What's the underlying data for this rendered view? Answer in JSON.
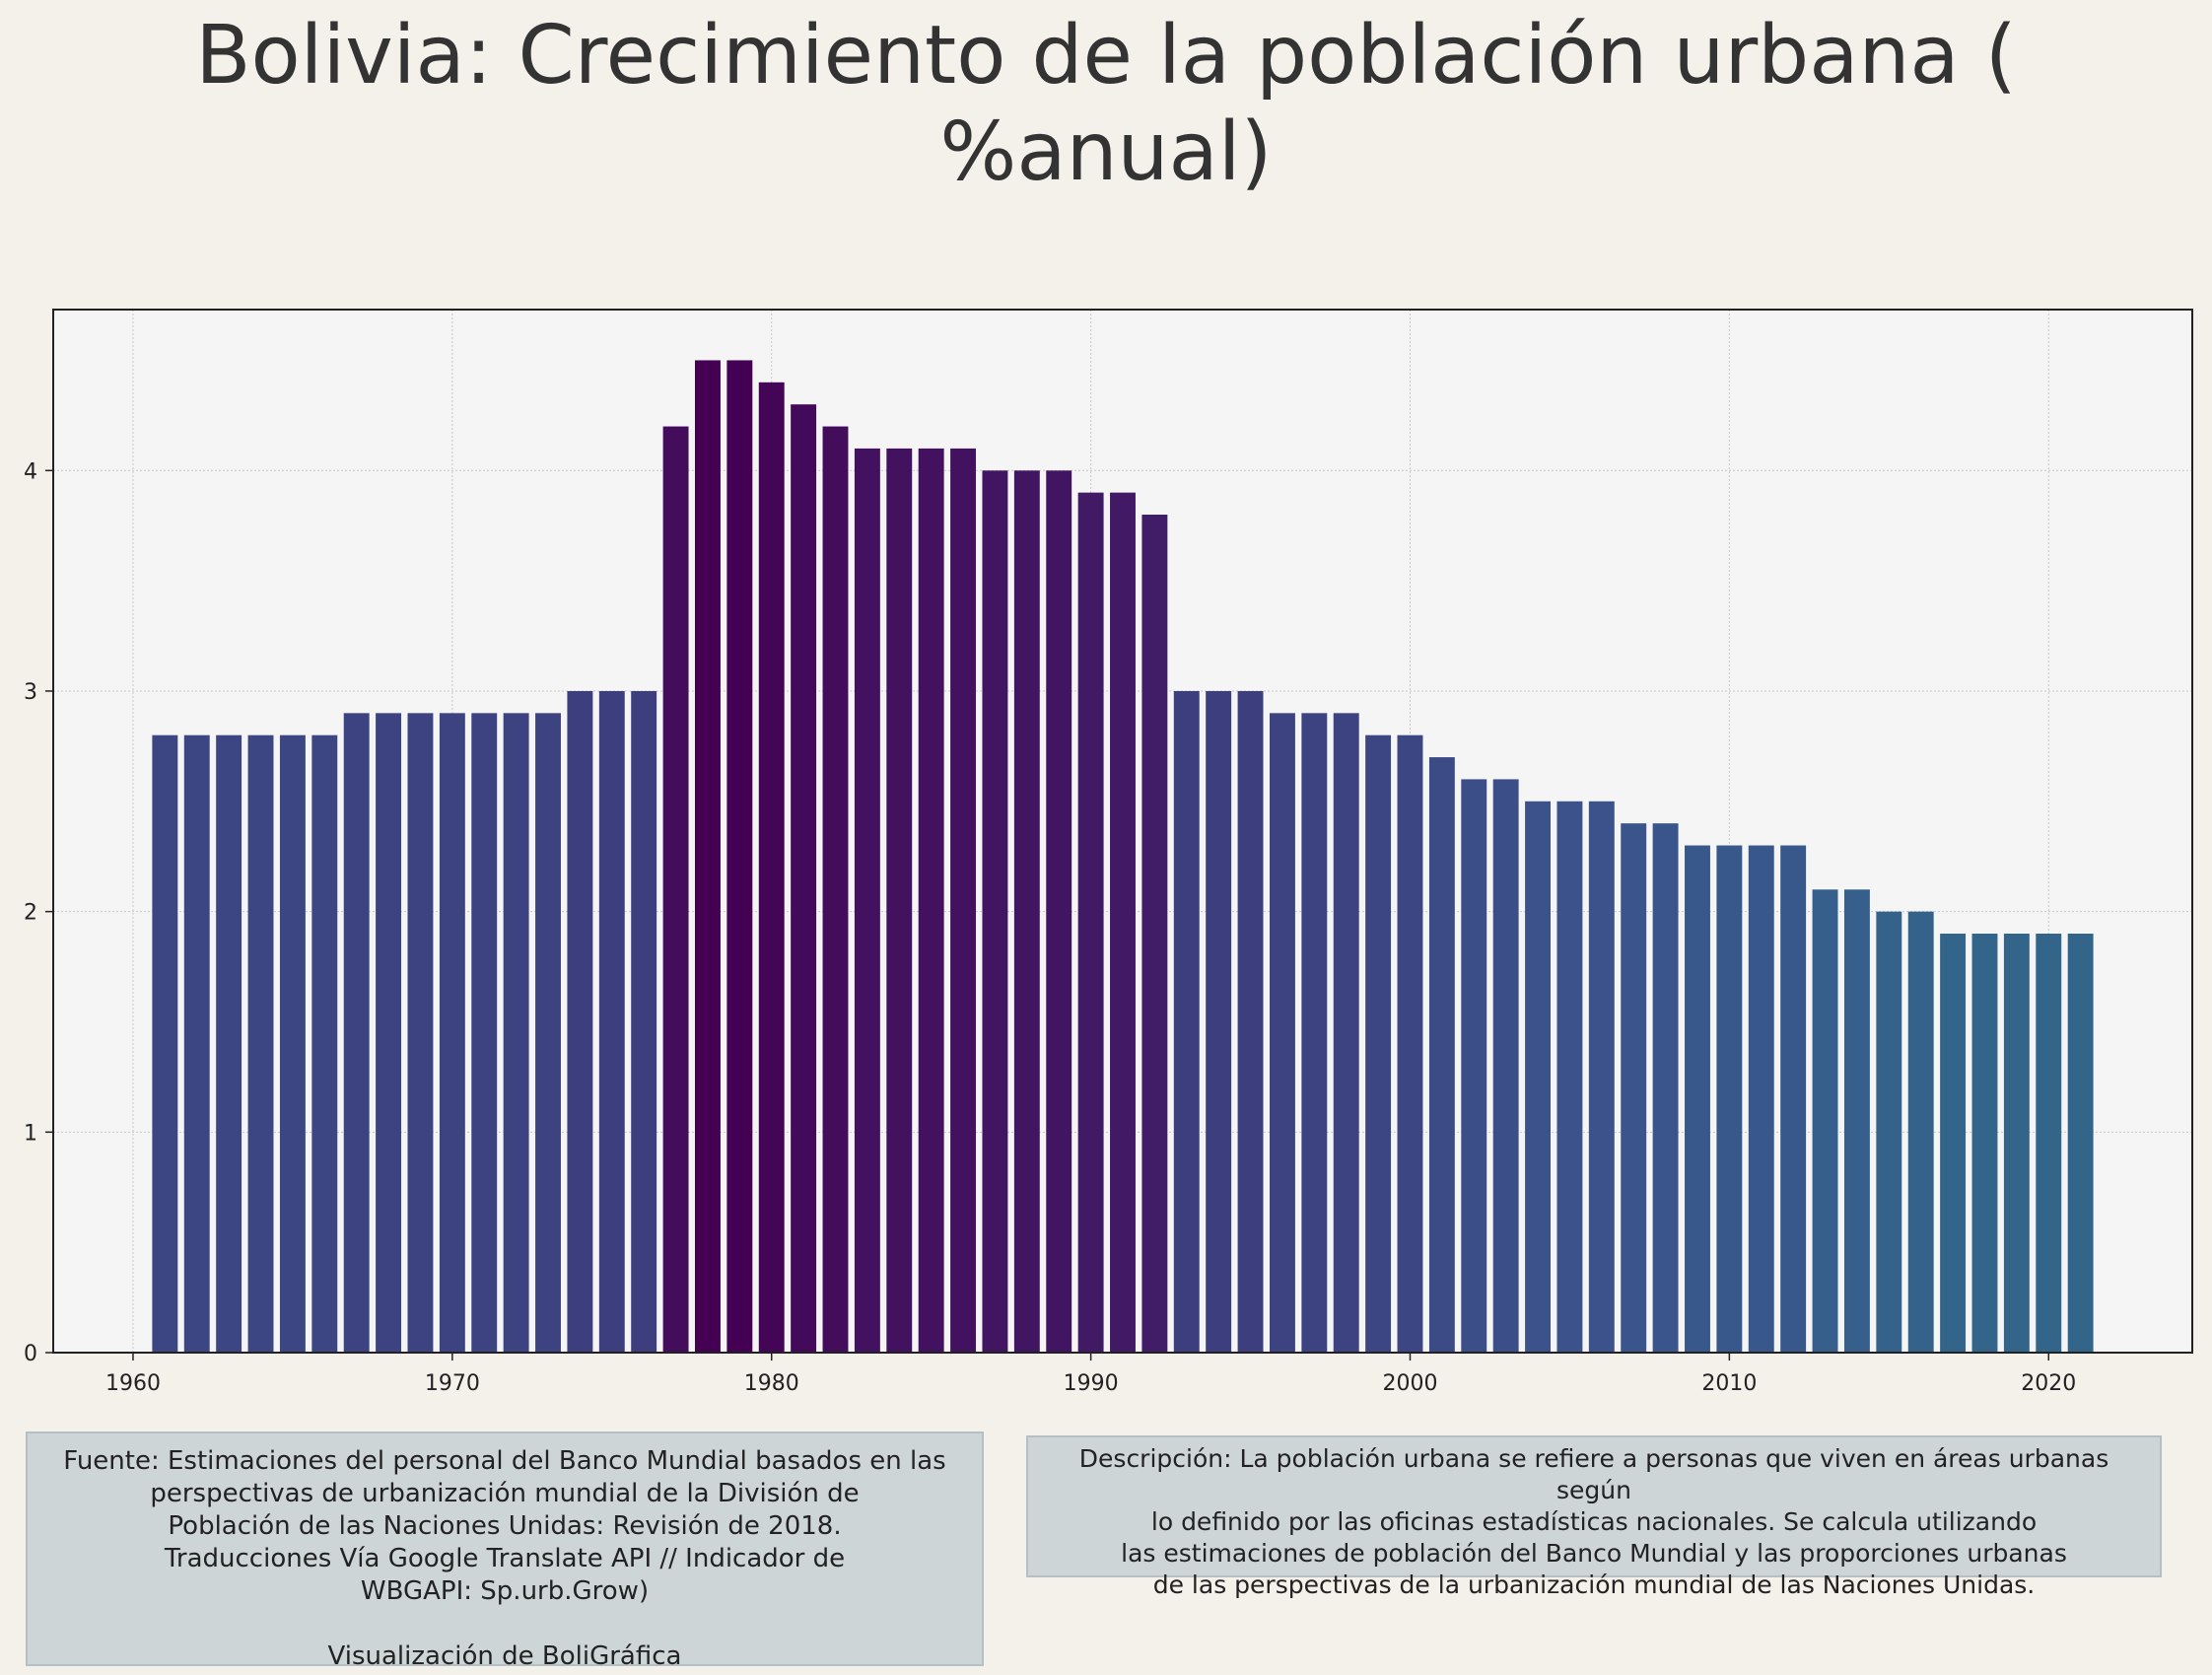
{
  "title_line1": "Bolivia:  Crecimiento de la población urbana (",
  "title_line2": "%anual)",
  "colors": {
    "background": "#f4f0ea",
    "plot_background": "#f5f5f5",
    "bar_palette": "viridis (dark purple at peak, teal at low values)"
  },
  "chart_data": {
    "type": "bar",
    "x": [
      1961,
      1962,
      1963,
      1964,
      1965,
      1966,
      1967,
      1968,
      1969,
      1970,
      1971,
      1972,
      1973,
      1974,
      1975,
      1976,
      1977,
      1978,
      1979,
      1980,
      1981,
      1982,
      1983,
      1984,
      1985,
      1986,
      1987,
      1988,
      1989,
      1990,
      1991,
      1992,
      1993,
      1994,
      1995,
      1996,
      1997,
      1998,
      1999,
      2000,
      2001,
      2002,
      2003,
      2004,
      2005,
      2006,
      2007,
      2008,
      2009,
      2010,
      2011,
      2012,
      2013,
      2014,
      2015,
      2016,
      2017,
      2018,
      2019,
      2020,
      2021
    ],
    "values": [
      2.8,
      2.8,
      2.8,
      2.8,
      2.8,
      2.8,
      2.9,
      2.9,
      2.9,
      2.9,
      2.9,
      2.9,
      2.9,
      3.0,
      3.0,
      3.0,
      4.2,
      4.5,
      4.5,
      4.4,
      4.3,
      4.2,
      4.1,
      4.1,
      4.1,
      4.1,
      4.0,
      4.0,
      4.0,
      3.9,
      3.9,
      3.8,
      3.0,
      3.0,
      3.0,
      2.9,
      2.9,
      2.9,
      2.8,
      2.8,
      2.7,
      2.6,
      2.6,
      2.5,
      2.5,
      2.5,
      2.4,
      2.4,
      2.3,
      2.3,
      2.3,
      2.3,
      2.1,
      2.1,
      2.0,
      2.0,
      1.9,
      1.9,
      1.9,
      1.9,
      1.9
    ],
    "xticks": [
      1960,
      1970,
      1980,
      1990,
      2000,
      2010,
      2020
    ],
    "yticks": [
      0,
      1,
      2,
      3,
      4
    ],
    "xlim": [
      1957.5,
      2024.5
    ],
    "ylim": [
      0,
      4.73
    ],
    "grid": true,
    "legend": "none"
  },
  "source_box": {
    "lines": [
      "Fuente: Estimaciones del personal del Banco Mundial basados en las",
      "perspectivas de urbanización mundial de la División de",
      "Población de las Naciones Unidas: Revisión de 2018.",
      "Traducciones Vía Google Translate API // Indicador de",
      "WBGAPI: Sp.urb.Grow)"
    ],
    "credit": "Visualización de BoliGráfica"
  },
  "description_box": {
    "lines": [
      "Descripción: La población urbana se refiere a personas que viven en áreas urbanas según",
      "lo definido por las oficinas estadísticas nacionales. Se calcula utilizando",
      "las estimaciones de población del Banco Mundial y las proporciones urbanas",
      "de las perspectivas de la urbanización mundial de las Naciones Unidas."
    ]
  }
}
